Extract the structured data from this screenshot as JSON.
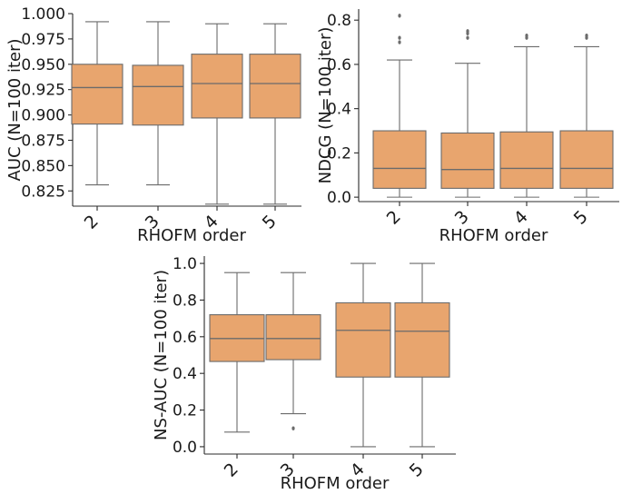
{
  "colors": {
    "box_fill": "#e8a56e",
    "line": "#6b6b6b",
    "axis": "#2b2b2b"
  },
  "chart_data": [
    {
      "type": "box",
      "xlabel": "RHOFM order",
      "ylabel": "AUC (N=100 iter)",
      "categories": [
        "2",
        "3",
        "4",
        "5"
      ],
      "ylim": [
        0.81,
        1.0
      ],
      "yticks": [
        0.825,
        0.85,
        0.875,
        0.9,
        0.925,
        0.95,
        0.975,
        1.0
      ],
      "ytick_labels": [
        "0.825",
        "0.850",
        "0.875",
        "0.900",
        "0.925",
        "0.950",
        "0.975",
        "1.000"
      ],
      "boxes": [
        {
          "whislo": 0.831,
          "q1": 0.891,
          "med": 0.927,
          "q3": 0.95,
          "whishi": 0.992,
          "fliers": []
        },
        {
          "whislo": 0.831,
          "q1": 0.89,
          "med": 0.928,
          "q3": 0.949,
          "whishi": 0.992,
          "fliers": []
        },
        {
          "whislo": 0.812,
          "q1": 0.897,
          "med": 0.931,
          "q3": 0.96,
          "whishi": 0.99,
          "fliers": []
        },
        {
          "whislo": 0.812,
          "q1": 0.897,
          "med": 0.931,
          "q3": 0.96,
          "whishi": 0.99,
          "fliers": []
        }
      ]
    },
    {
      "type": "box",
      "xlabel": "RHOFM order",
      "ylabel": "NDCG (N=100 iter)",
      "categories": [
        "2",
        "3",
        "4",
        "5"
      ],
      "ylim": [
        -0.02,
        0.85
      ],
      "yticks": [
        0.0,
        0.2,
        0.4,
        0.6,
        0.8
      ],
      "ytick_labels": [
        "0.0",
        "0.2",
        "0.4",
        "0.6",
        "0.8"
      ],
      "boxes": [
        {
          "whislo": 0.0,
          "q1": 0.04,
          "med": 0.13,
          "q3": 0.3,
          "whishi": 0.62,
          "fliers": [
            0.7,
            0.72,
            0.82
          ]
        },
        {
          "whislo": 0.0,
          "q1": 0.04,
          "med": 0.125,
          "q3": 0.29,
          "whishi": 0.605,
          "fliers": [
            0.72,
            0.74,
            0.75
          ]
        },
        {
          "whislo": 0.0,
          "q1": 0.04,
          "med": 0.13,
          "q3": 0.295,
          "whishi": 0.68,
          "fliers": [
            0.72,
            0.73
          ]
        },
        {
          "whislo": 0.0,
          "q1": 0.04,
          "med": 0.13,
          "q3": 0.3,
          "whishi": 0.68,
          "fliers": [
            0.72,
            0.73
          ]
        }
      ]
    },
    {
      "type": "box",
      "xlabel": "RHOFM order",
      "ylabel": "NS-AUC (N=100 iter)",
      "categories": [
        "2",
        "3",
        "4",
        "5"
      ],
      "ylim": [
        -0.04,
        1.04
      ],
      "yticks": [
        0.0,
        0.2,
        0.4,
        0.6,
        0.8,
        1.0
      ],
      "ytick_labels": [
        "0.0",
        "0.2",
        "0.4",
        "0.6",
        "0.8",
        "1.0"
      ],
      "boxes": [
        {
          "whislo": 0.08,
          "q1": 0.465,
          "med": 0.59,
          "q3": 0.72,
          "whishi": 0.95,
          "fliers": []
        },
        {
          "whislo": 0.18,
          "q1": 0.475,
          "med": 0.59,
          "q3": 0.72,
          "whishi": 0.95,
          "fliers": [
            0.1
          ]
        },
        {
          "whislo": 0.0,
          "q1": 0.38,
          "med": 0.635,
          "q3": 0.785,
          "whishi": 1.0,
          "fliers": []
        },
        {
          "whislo": 0.0,
          "q1": 0.38,
          "med": 0.63,
          "q3": 0.785,
          "whishi": 1.0,
          "fliers": []
        }
      ]
    }
  ]
}
